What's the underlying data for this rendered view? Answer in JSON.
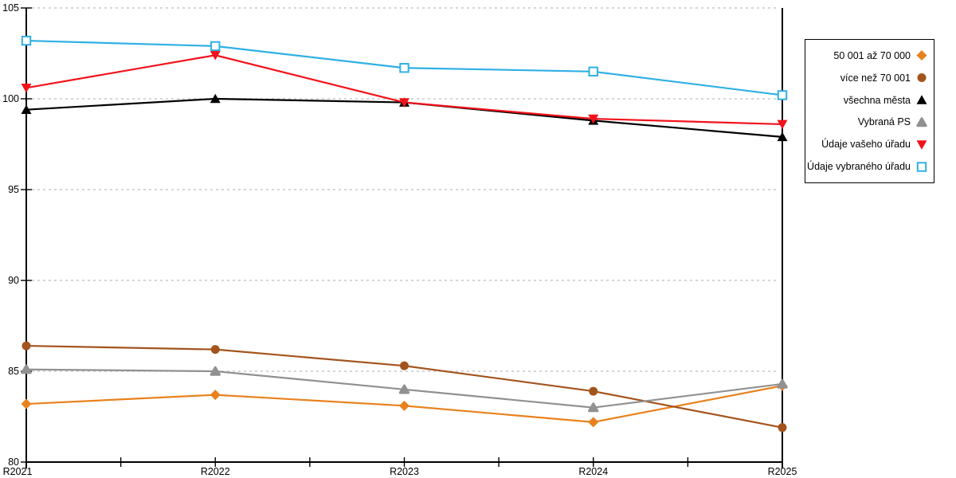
{
  "chart_data": {
    "type": "line",
    "categories": [
      "R2021",
      "R2022",
      "R2023",
      "R2024",
      "R2025"
    ],
    "ylim": [
      80,
      105
    ],
    "y_ticks": [
      105,
      100,
      95,
      90,
      85,
      80
    ],
    "grid": "horizontal-dashed",
    "gridline_color": "#c9c9c9",
    "axis_color": "#000000",
    "legend_position": "right-outside",
    "vertical_marker_x": "R2025",
    "series": [
      {
        "name": "50 001 až 70 000",
        "marker": "diamond",
        "color": "#e8821e",
        "values": [
          83.2,
          83.7,
          83.1,
          82.2,
          84.2
        ]
      },
      {
        "name": "více než 70 001",
        "marker": "circle",
        "color": "#a3541d",
        "values": [
          86.4,
          86.2,
          85.3,
          83.9,
          81.9
        ]
      },
      {
        "name": "všechna města",
        "marker": "triangle-up",
        "color": "#000000",
        "values": [
          99.4,
          100.0,
          99.8,
          98.8,
          97.9
        ]
      },
      {
        "name": "Vybraná PS",
        "marker": "triangle-up-rounded",
        "color": "#919191",
        "values": [
          85.1,
          85.0,
          84.0,
          83.0,
          84.3
        ]
      },
      {
        "name": "Údaje vašeho úřadu",
        "marker": "triangle-down",
        "color": "#f2121b",
        "values": [
          100.6,
          102.4,
          99.8,
          98.9,
          98.6
        ]
      },
      {
        "name": "Údaje vybraného úřadu",
        "marker": "square-open",
        "color": "#2fb0e4",
        "values": [
          103.2,
          102.9,
          101.7,
          101.5,
          100.2
        ]
      }
    ]
  }
}
